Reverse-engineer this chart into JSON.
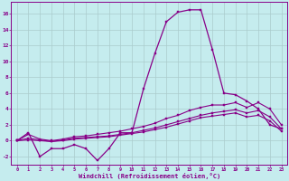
{
  "xlabel": "Windchill (Refroidissement éolien,°C)",
  "bg_color": "#c5ecee",
  "line_color": "#880088",
  "grid_color": "#aacccc",
  "xlim": [
    -0.5,
    23.5
  ],
  "ylim": [
    -3.0,
    17.5
  ],
  "yticks": [
    -2,
    0,
    2,
    4,
    6,
    8,
    10,
    12,
    14,
    16
  ],
  "xticks": [
    0,
    1,
    2,
    3,
    4,
    5,
    6,
    7,
    8,
    9,
    10,
    11,
    12,
    13,
    14,
    15,
    16,
    17,
    18,
    19,
    20,
    21,
    22,
    23
  ],
  "line1_x": [
    0,
    1,
    2,
    3,
    4,
    5,
    6,
    7,
    8,
    9,
    10,
    11,
    12,
    13,
    14,
    15,
    16,
    17,
    18,
    19,
    20,
    21,
    22,
    23
  ],
  "line1_y": [
    0.0,
    1.0,
    -2.0,
    -1.0,
    -1.0,
    -0.5,
    -1.0,
    -2.5,
    -1.0,
    1.0,
    1.0,
    6.5,
    11.0,
    15.0,
    16.2,
    16.5,
    16.5,
    11.5,
    6.0,
    5.8,
    5.0,
    4.0,
    2.0,
    1.5
  ],
  "line2_x": [
    0,
    1,
    2,
    3,
    4,
    5,
    6,
    7,
    8,
    9,
    10,
    11,
    12,
    13,
    14,
    15,
    16,
    17,
    18,
    19,
    20,
    21,
    22,
    23
  ],
  "line2_y": [
    0.0,
    0.8,
    0.2,
    0.0,
    0.2,
    0.5,
    0.6,
    0.8,
    1.0,
    1.2,
    1.5,
    1.8,
    2.2,
    2.8,
    3.2,
    3.8,
    4.2,
    4.5,
    4.5,
    4.8,
    4.2,
    4.8,
    4.0,
    2.0
  ],
  "line3_x": [
    0,
    1,
    2,
    3,
    4,
    5,
    6,
    7,
    8,
    9,
    10,
    11,
    12,
    13,
    14,
    15,
    16,
    17,
    18,
    19,
    20,
    21,
    22,
    23
  ],
  "line3_y": [
    0.0,
    0.3,
    0.1,
    -0.1,
    0.1,
    0.3,
    0.4,
    0.5,
    0.6,
    0.8,
    1.0,
    1.3,
    1.6,
    2.0,
    2.4,
    2.8,
    3.2,
    3.5,
    3.7,
    3.9,
    3.5,
    3.8,
    3.0,
    1.5
  ],
  "line4_x": [
    0,
    1,
    2,
    3,
    4,
    5,
    6,
    7,
    8,
    9,
    10,
    11,
    12,
    13,
    14,
    15,
    16,
    17,
    18,
    19,
    20,
    21,
    22,
    23
  ],
  "line4_y": [
    0.0,
    0.1,
    0.0,
    -0.1,
    0.0,
    0.2,
    0.3,
    0.4,
    0.5,
    0.7,
    0.9,
    1.1,
    1.4,
    1.7,
    2.1,
    2.5,
    2.9,
    3.1,
    3.3,
    3.5,
    3.0,
    3.2,
    2.5,
    1.2
  ]
}
